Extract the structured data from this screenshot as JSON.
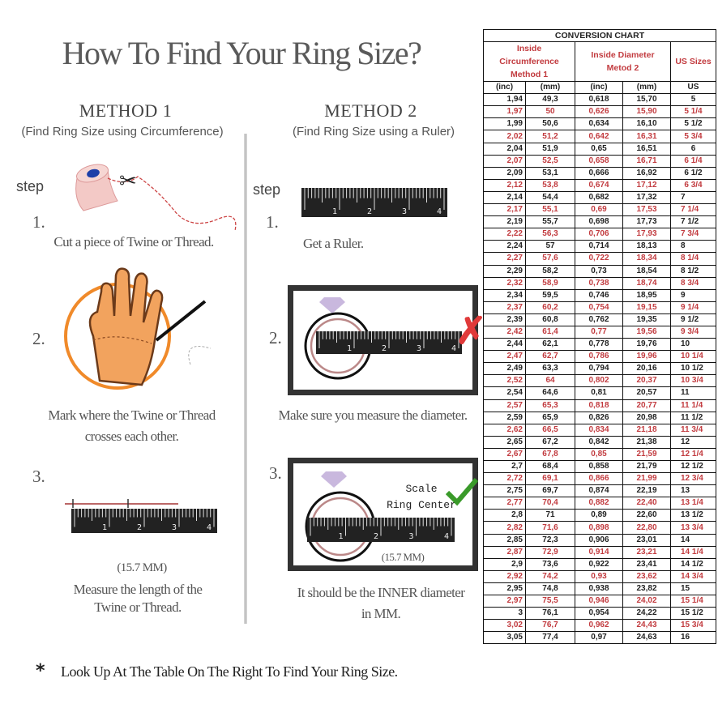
{
  "title": "How To Find Your Ring Size?",
  "method1": {
    "heading": "METHOD 1",
    "subtitle": "(Find Ring Size using Circumference)",
    "step_label": "step",
    "steps": [
      {
        "num": "1.",
        "text": "Cut a piece of  Twine or Thread."
      },
      {
        "num": "2.",
        "text": "Mark where the Twine or Thread",
        "text2": "crosses each other."
      },
      {
        "num": "3.",
        "measure": "(15.7 MM)",
        "text": "Measure the length of the",
        "text2": "Twine or Thread."
      }
    ]
  },
  "method2": {
    "heading": "METHOD 2",
    "subtitle": "(Find Ring Size using a Ruler)",
    "step_label": "step",
    "steps": [
      {
        "num": "1.",
        "text": "Get a Ruler."
      },
      {
        "num": "2.",
        "text": "Make sure you measure the diameter."
      },
      {
        "num": "3.",
        "scale_line1": "Scale",
        "scale_line2": "Ring Center",
        "measure": "(15.7 MM)",
        "text": "It should be the INNER diameter",
        "text2": "in MM."
      }
    ]
  },
  "ruler_labels": [
    "1",
    "2",
    "3",
    "4"
  ],
  "footer": {
    "bullet": "*",
    "text": "Look Up At The Table On The Right To Find Your Ring Size."
  },
  "colors": {
    "red": "#c23b3f",
    "check": "#3a9a2a",
    "cross": "#e03a3a",
    "hand": "#f2a35e",
    "circle": "#f08a2a"
  },
  "table": {
    "title": "CONVERSION CHART",
    "group_headers": [
      "Inside Circumference",
      "Method 1",
      "Inside Diameter",
      "Metod 2",
      "US Sizes"
    ],
    "units": [
      "(inc)",
      "(mm)",
      "(inc)",
      "(mm)",
      "US"
    ],
    "rows": [
      [
        "1,94",
        "49,3",
        "0,618",
        "15,70",
        "5"
      ],
      [
        "1,97",
        "50",
        "0,626",
        "15,90",
        "5 1/4"
      ],
      [
        "1,99",
        "50,6",
        "0,634",
        "16,10",
        "5 1/2"
      ],
      [
        "2,02",
        "51,2",
        "0,642",
        "16,31",
        "5 3/4"
      ],
      [
        "2,04",
        "51,9",
        "0,65",
        "16,51",
        "6"
      ],
      [
        "2,07",
        "52,5",
        "0,658",
        "16,71",
        "6 1/4"
      ],
      [
        "2,09",
        "53,1",
        "0,666",
        "16,92",
        "6 1/2"
      ],
      [
        "2,12",
        "53,8",
        "0,674",
        "17,12",
        "6 3/4"
      ],
      [
        "2,14",
        "54,4",
        "0,682",
        "17,32",
        "7"
      ],
      [
        "2,17",
        "55,1",
        "0,69",
        "17,53",
        "7 1/4"
      ],
      [
        "2,19",
        "55,7",
        "0,698",
        "17,73",
        "7 1/2"
      ],
      [
        "2,22",
        "56,3",
        "0,706",
        "17,93",
        "7 3/4"
      ],
      [
        "2,24",
        "57",
        "0,714",
        "18,13",
        "8"
      ],
      [
        "2,27",
        "57,6",
        "0,722",
        "18,34",
        "8 1/4"
      ],
      [
        "2,29",
        "58,2",
        "0,73",
        "18,54",
        "8 1/2"
      ],
      [
        "2,32",
        "58,9",
        "0,738",
        "18,74",
        "8 3/4"
      ],
      [
        "2,34",
        "59,5",
        "0,746",
        "18,95",
        "9"
      ],
      [
        "2,37",
        "60,2",
        "0,754",
        "19,15",
        "9 1/4"
      ],
      [
        "2,39",
        "60,8",
        "0,762",
        "19,35",
        "9 1/2"
      ],
      [
        "2,42",
        "61,4",
        "0,77",
        "19,56",
        "9 3/4"
      ],
      [
        "2,44",
        "62,1",
        "0,778",
        "19,76",
        "10"
      ],
      [
        "2,47",
        "62,7",
        "0,786",
        "19,96",
        "10 1/4"
      ],
      [
        "2,49",
        "63,3",
        "0,794",
        "20,16",
        "10 1/2"
      ],
      [
        "2,52",
        "64",
        "0,802",
        "20,37",
        "10 3/4"
      ],
      [
        "2,54",
        "64,6",
        "0,81",
        "20,57",
        "11"
      ],
      [
        "2,57",
        "65,3",
        "0,818",
        "20,77",
        "11 1/4"
      ],
      [
        "2,59",
        "65,9",
        "0,826",
        "20,98",
        "11 1/2"
      ],
      [
        "2,62",
        "66,5",
        "0,834",
        "21,18",
        "11 3/4"
      ],
      [
        "2,65",
        "67,2",
        "0,842",
        "21,38",
        "12"
      ],
      [
        "2,67",
        "67,8",
        "0,85",
        "21,59",
        "12 1/4"
      ],
      [
        "2,7",
        "68,4",
        "0,858",
        "21,79",
        "12 1/2"
      ],
      [
        "2,72",
        "69,1",
        "0,866",
        "21,99",
        "12 3/4"
      ],
      [
        "2,75",
        "69,7",
        "0,874",
        "22,19",
        "13"
      ],
      [
        "2,77",
        "70,4",
        "0,882",
        "22,40",
        "13 1/4"
      ],
      [
        "2,8",
        "71",
        "0,89",
        "22,60",
        "13 1/2"
      ],
      [
        "2,82",
        "71,6",
        "0,898",
        "22,80",
        "13 3/4"
      ],
      [
        "2,85",
        "72,3",
        "0,906",
        "23,01",
        "14"
      ],
      [
        "2,87",
        "72,9",
        "0,914",
        "23,21",
        "14 1/4"
      ],
      [
        "2,9",
        "73,6",
        "0,922",
        "23,41",
        "14 1/2"
      ],
      [
        "2,92",
        "74,2",
        "0,93",
        "23,62",
        "14 3/4"
      ],
      [
        "2,95",
        "74,8",
        "0,938",
        "23,82",
        "15"
      ],
      [
        "2,97",
        "75,5",
        "0,946",
        "24,02",
        "15 1/4"
      ],
      [
        "3",
        "76,1",
        "0,954",
        "24,22",
        "15 1/2"
      ],
      [
        "3,02",
        "76,7",
        "0,962",
        "24,43",
        "15 3/4"
      ],
      [
        "3,05",
        "77,4",
        "0,97",
        "24,63",
        "16"
      ]
    ]
  }
}
